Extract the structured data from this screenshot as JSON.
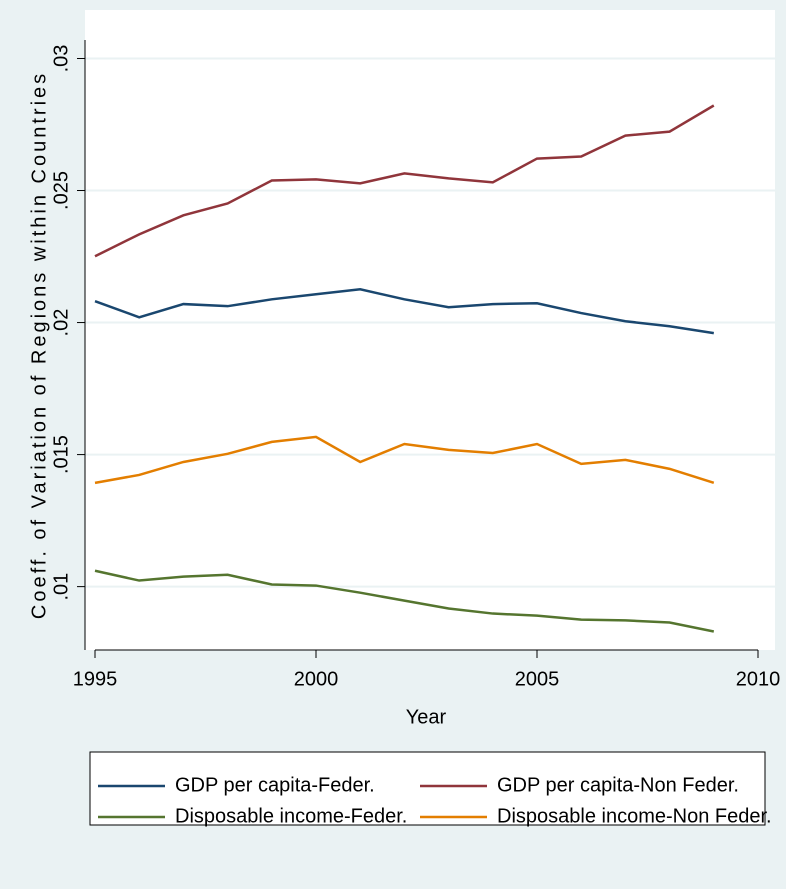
{
  "chart_data": {
    "type": "line",
    "x": [
      1995,
      1996,
      1997,
      1998,
      1999,
      2000,
      2001,
      2002,
      2003,
      2004,
      2005,
      2006,
      2007,
      2008,
      2009
    ],
    "x_label": "Year",
    "y_label": "Coeff. of Variation of Regions within Countries",
    "xlim": [
      1995,
      2010
    ],
    "xticks": [
      1995,
      2000,
      2005,
      2010
    ],
    "ylim": [
      0.0076,
      0.0307
    ],
    "yticks": [
      {
        "value": 0.01,
        "label": ".01"
      },
      {
        "value": 0.015,
        "label": ".015"
      },
      {
        "value": 0.02,
        "label": ".02"
      },
      {
        "value": 0.025,
        "label": ".025"
      },
      {
        "value": 0.03,
        "label": ".03"
      }
    ],
    "grid": true,
    "legend_position": "bottom",
    "series": [
      {
        "name": "GDP per capita-Feder.",
        "color": "#1a476f",
        "values": [
          0.02081,
          0.0202,
          0.0207,
          0.02062,
          0.02088,
          0.02107,
          0.02126,
          0.02088,
          0.02058,
          0.0207,
          0.02073,
          0.02036,
          0.02005,
          0.01986,
          0.0196
        ]
      },
      {
        "name": "GDP per capita-Non Feder.",
        "color": "#90353b",
        "values": [
          0.02251,
          0.02334,
          0.02406,
          0.02451,
          0.02538,
          0.02542,
          0.02527,
          0.02565,
          0.02546,
          0.02531,
          0.02621,
          0.02629,
          0.02708,
          0.02723,
          0.02822
        ]
      },
      {
        "name": "Disposable income-Feder.",
        "color": "#55752f",
        "values": [
          0.0106,
          0.01023,
          0.01038,
          0.01045,
          0.01008,
          0.01004,
          0.00977,
          0.00947,
          0.00917,
          0.00898,
          0.0089,
          0.00875,
          0.00872,
          0.00864,
          0.0083
        ]
      },
      {
        "name": "Disposable income-Non Feder.",
        "color": "#e37e00",
        "values": [
          0.01393,
          0.01423,
          0.01472,
          0.01503,
          0.01548,
          0.01567,
          0.01472,
          0.0154,
          0.01518,
          0.01506,
          0.0154,
          0.01465,
          0.0148,
          0.01446,
          0.01393
        ]
      }
    ]
  }
}
